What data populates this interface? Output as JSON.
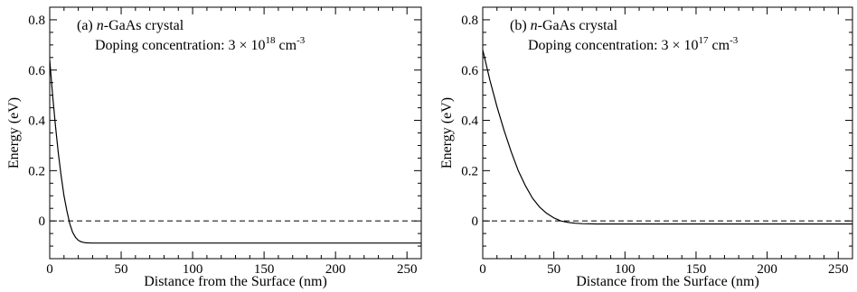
{
  "chart_data": [
    {
      "type": "line",
      "annotation": {
        "prefix": "(a) ",
        "material_italic": "n",
        "material_rest": "-GaAs crystal",
        "doping_label": "Doping concentration: 3 × 10",
        "doping_exponent": "18",
        "doping_unit": " cm",
        "doping_unit_exponent": "-3"
      },
      "xlabel": "Distance from the Surface (nm)",
      "ylabel": "Energy (eV)",
      "xlim": [
        0,
        260
      ],
      "ylim": [
        -0.15,
        0.85
      ],
      "xticks": [
        0,
        50,
        100,
        150,
        200,
        250
      ],
      "xtick_labels": [
        "0",
        "50",
        "100",
        "150",
        "200",
        "250"
      ],
      "yticks": [
        0,
        0.2,
        0.4,
        0.6,
        0.8
      ],
      "ytick_labels": [
        "0",
        "0.2",
        "0.4",
        "0.6",
        "0.8"
      ],
      "reference_line": {
        "y": 0,
        "style": "dashed"
      },
      "series": [
        {
          "x": [
            0,
            2,
            4,
            6,
            8,
            10,
            12,
            14,
            16,
            18,
            20,
            22,
            25,
            30,
            50,
            100,
            150,
            200,
            260
          ],
          "y": [
            0.64,
            0.5,
            0.38,
            0.27,
            0.18,
            0.1,
            0.04,
            -0.01,
            -0.045,
            -0.065,
            -0.077,
            -0.083,
            -0.087,
            -0.088,
            -0.088,
            -0.088,
            -0.088,
            -0.088,
            -0.088
          ]
        }
      ]
    },
    {
      "type": "line",
      "annotation": {
        "prefix": "(b) ",
        "material_italic": "n",
        "material_rest": "-GaAs crystal",
        "doping_label": "Doping concentration: 3 × 10",
        "doping_exponent": "17",
        "doping_unit": " cm",
        "doping_unit_exponent": "-3"
      },
      "xlabel": "Distance from the Surface (nm)",
      "ylabel": "Energy (eV)",
      "xlim": [
        0,
        260
      ],
      "ylim": [
        -0.15,
        0.85
      ],
      "xticks": [
        0,
        50,
        100,
        150,
        200,
        250
      ],
      "xtick_labels": [
        "0",
        "50",
        "100",
        "150",
        "200",
        "250"
      ],
      "yticks": [
        0,
        0.2,
        0.4,
        0.6,
        0.8
      ],
      "ytick_labels": [
        "0",
        "0.2",
        "0.4",
        "0.6",
        "0.8"
      ],
      "reference_line": {
        "y": 0,
        "style": "dashed"
      },
      "series": [
        {
          "x": [
            0,
            5,
            10,
            15,
            20,
            25,
            30,
            35,
            40,
            45,
            50,
            55,
            60,
            65,
            70,
            80,
            100,
            150,
            200,
            260
          ],
          "y": [
            0.68,
            0.56,
            0.455,
            0.36,
            0.275,
            0.2,
            0.14,
            0.09,
            0.055,
            0.03,
            0.012,
            0.0,
            -0.006,
            -0.009,
            -0.011,
            -0.012,
            -0.012,
            -0.012,
            -0.012,
            -0.012
          ]
        }
      ]
    }
  ]
}
